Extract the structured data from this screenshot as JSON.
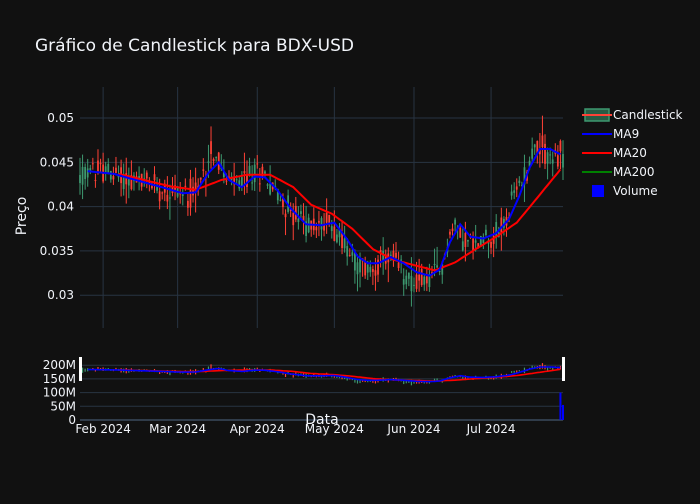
{
  "chart_data": {
    "type": "candlestick",
    "title": "Gráfico de Candlestick para BDX-USD",
    "xlabel": "Data",
    "ylabel": "Preço",
    "price_ylim": [
      0.0263,
      0.0535
    ],
    "price_yticks": [
      0.03,
      0.035,
      0.04,
      0.045,
      0.05
    ],
    "price_ytick_labels": [
      "0.03",
      "0.035",
      "0.04",
      "0.045",
      "0.05"
    ],
    "volume_ylim": [
      0,
      230000000
    ],
    "volume_yticks": [
      0,
      50000000,
      100000000,
      150000000,
      200000000
    ],
    "volume_ytick_labels": [
      "0",
      "50M",
      "100M",
      "150M",
      "200M"
    ],
    "x_range": [
      "2024-01-23",
      "2024-07-29"
    ],
    "x_ticks": [
      "2024-02-01",
      "2024-03-01",
      "2024-04-01",
      "2024-05-01",
      "2024-06-01",
      "2024-07-01"
    ],
    "x_tick_labels": [
      "Feb 2024",
      "Mar 2024",
      "Apr 2024",
      "May 2024",
      "Jun 2024",
      "Jul 2024"
    ],
    "price_anchors": [
      [
        "2024-01-23",
        0.0432
      ],
      [
        "2024-01-27",
        0.044
      ],
      [
        "2024-02-01",
        0.0441
      ],
      [
        "2024-02-05",
        0.0436
      ],
      [
        "2024-02-10",
        0.0432
      ],
      [
        "2024-02-15",
        0.0428
      ],
      [
        "2024-02-20",
        0.0426
      ],
      [
        "2024-02-25",
        0.042
      ],
      [
        "2024-03-01",
        0.0418
      ],
      [
        "2024-03-05",
        0.0414
      ],
      [
        "2024-03-09",
        0.0418
      ],
      [
        "2024-03-12",
        0.0445
      ],
      [
        "2024-03-14",
        0.0468
      ],
      [
        "2024-03-17",
        0.045
      ],
      [
        "2024-03-20",
        0.0428
      ],
      [
        "2024-03-25",
        0.0425
      ],
      [
        "2024-03-30",
        0.0437
      ],
      [
        "2024-04-03",
        0.044
      ],
      [
        "2024-04-07",
        0.0422
      ],
      [
        "2024-04-11",
        0.0405
      ],
      [
        "2024-04-15",
        0.0392
      ],
      [
        "2024-04-20",
        0.038
      ],
      [
        "2024-04-25",
        0.0378
      ],
      [
        "2024-04-29",
        0.0385
      ],
      [
        "2024-05-03",
        0.0368
      ],
      [
        "2024-05-06",
        0.0352
      ],
      [
        "2024-05-10",
        0.0335
      ],
      [
        "2024-05-14",
        0.0328
      ],
      [
        "2024-05-18",
        0.0335
      ],
      [
        "2024-05-22",
        0.0342
      ],
      [
        "2024-05-26",
        0.0332
      ],
      [
        "2024-05-30",
        0.0318
      ],
      [
        "2024-06-03",
        0.0315
      ],
      [
        "2024-06-08",
        0.032
      ],
      [
        "2024-06-12",
        0.033
      ],
      [
        "2024-06-14",
        0.0362
      ],
      [
        "2024-06-17",
        0.0378
      ],
      [
        "2024-06-21",
        0.0363
      ],
      [
        "2024-06-25",
        0.0355
      ],
      [
        "2024-06-29",
        0.0368
      ],
      [
        "2024-07-03",
        0.0368
      ],
      [
        "2024-07-07",
        0.0385
      ],
      [
        "2024-07-11",
        0.042
      ],
      [
        "2024-07-15",
        0.0442
      ],
      [
        "2024-07-18",
        0.047
      ],
      [
        "2024-07-22",
        0.0462
      ],
      [
        "2024-07-26",
        0.0452
      ],
      [
        "2024-07-28",
        0.0458
      ]
    ],
    "ma9_anchors": [
      [
        "2024-01-26",
        0.044
      ],
      [
        "2024-02-05",
        0.0437
      ],
      [
        "2024-02-15",
        0.0429
      ],
      [
        "2024-02-25",
        0.0421
      ],
      [
        "2024-03-03",
        0.0415
      ],
      [
        "2024-03-08",
        0.0416
      ],
      [
        "2024-03-13",
        0.0438
      ],
      [
        "2024-03-17",
        0.045
      ],
      [
        "2024-03-21",
        0.043
      ],
      [
        "2024-03-26",
        0.0422
      ],
      [
        "2024-03-31",
        0.0434
      ],
      [
        "2024-04-04",
        0.0433
      ],
      [
        "2024-04-09",
        0.0418
      ],
      [
        "2024-04-14",
        0.0398
      ],
      [
        "2024-04-20",
        0.038
      ],
      [
        "2024-04-26",
        0.0379
      ],
      [
        "2024-05-01",
        0.0382
      ],
      [
        "2024-05-06",
        0.0363
      ],
      [
        "2024-05-10",
        0.0344
      ],
      [
        "2024-05-14",
        0.0336
      ],
      [
        "2024-05-18",
        0.0336
      ],
      [
        "2024-05-23",
        0.0343
      ],
      [
        "2024-05-28",
        0.0336
      ],
      [
        "2024-06-02",
        0.0326
      ],
      [
        "2024-06-07",
        0.0322
      ],
      [
        "2024-06-11",
        0.0329
      ],
      [
        "2024-06-15",
        0.036
      ],
      [
        "2024-06-19",
        0.038
      ],
      [
        "2024-06-23",
        0.0366
      ],
      [
        "2024-06-28",
        0.0364
      ],
      [
        "2024-07-03",
        0.037
      ],
      [
        "2024-07-08",
        0.0386
      ],
      [
        "2024-07-12",
        0.0412
      ],
      [
        "2024-07-16",
        0.0444
      ],
      [
        "2024-07-20",
        0.0465
      ],
      [
        "2024-07-24",
        0.0465
      ],
      [
        "2024-07-28",
        0.0459
      ]
    ],
    "ma20_anchors": [
      [
        "2024-02-07",
        0.0437
      ],
      [
        "2024-02-17",
        0.043
      ],
      [
        "2024-02-27",
        0.0423
      ],
      [
        "2024-03-08",
        0.0419
      ],
      [
        "2024-03-18",
        0.043
      ],
      [
        "2024-03-28",
        0.0436
      ],
      [
        "2024-04-06",
        0.0436
      ],
      [
        "2024-04-15",
        0.0422
      ],
      [
        "2024-04-22",
        0.0402
      ],
      [
        "2024-04-30",
        0.0392
      ],
      [
        "2024-05-08",
        0.0375
      ],
      [
        "2024-05-16",
        0.0352
      ],
      [
        "2024-05-24",
        0.034
      ],
      [
        "2024-06-01",
        0.0334
      ],
      [
        "2024-06-09",
        0.0328
      ],
      [
        "2024-06-17",
        0.0337
      ],
      [
        "2024-06-25",
        0.0352
      ],
      [
        "2024-07-03",
        0.0366
      ],
      [
        "2024-07-11",
        0.0382
      ],
      [
        "2024-07-19",
        0.041
      ],
      [
        "2024-07-28",
        0.0442
      ]
    ],
    "volume_bars": [
      [
        "2024-07-28",
        100000000
      ],
      [
        "2024-07-29",
        55000000
      ]
    ],
    "series": [
      {
        "name": "Candlestick",
        "color_up": "#3d9970",
        "color_down": "#ff4136"
      },
      {
        "name": "MA9",
        "color": "#0000ff"
      },
      {
        "name": "MA20",
        "color": "#ff0000"
      },
      {
        "name": "MA200",
        "color": "#008000"
      },
      {
        "name": "Volume",
        "color": "#0000ff"
      }
    ],
    "grid": true,
    "legend_position": "top-right"
  }
}
